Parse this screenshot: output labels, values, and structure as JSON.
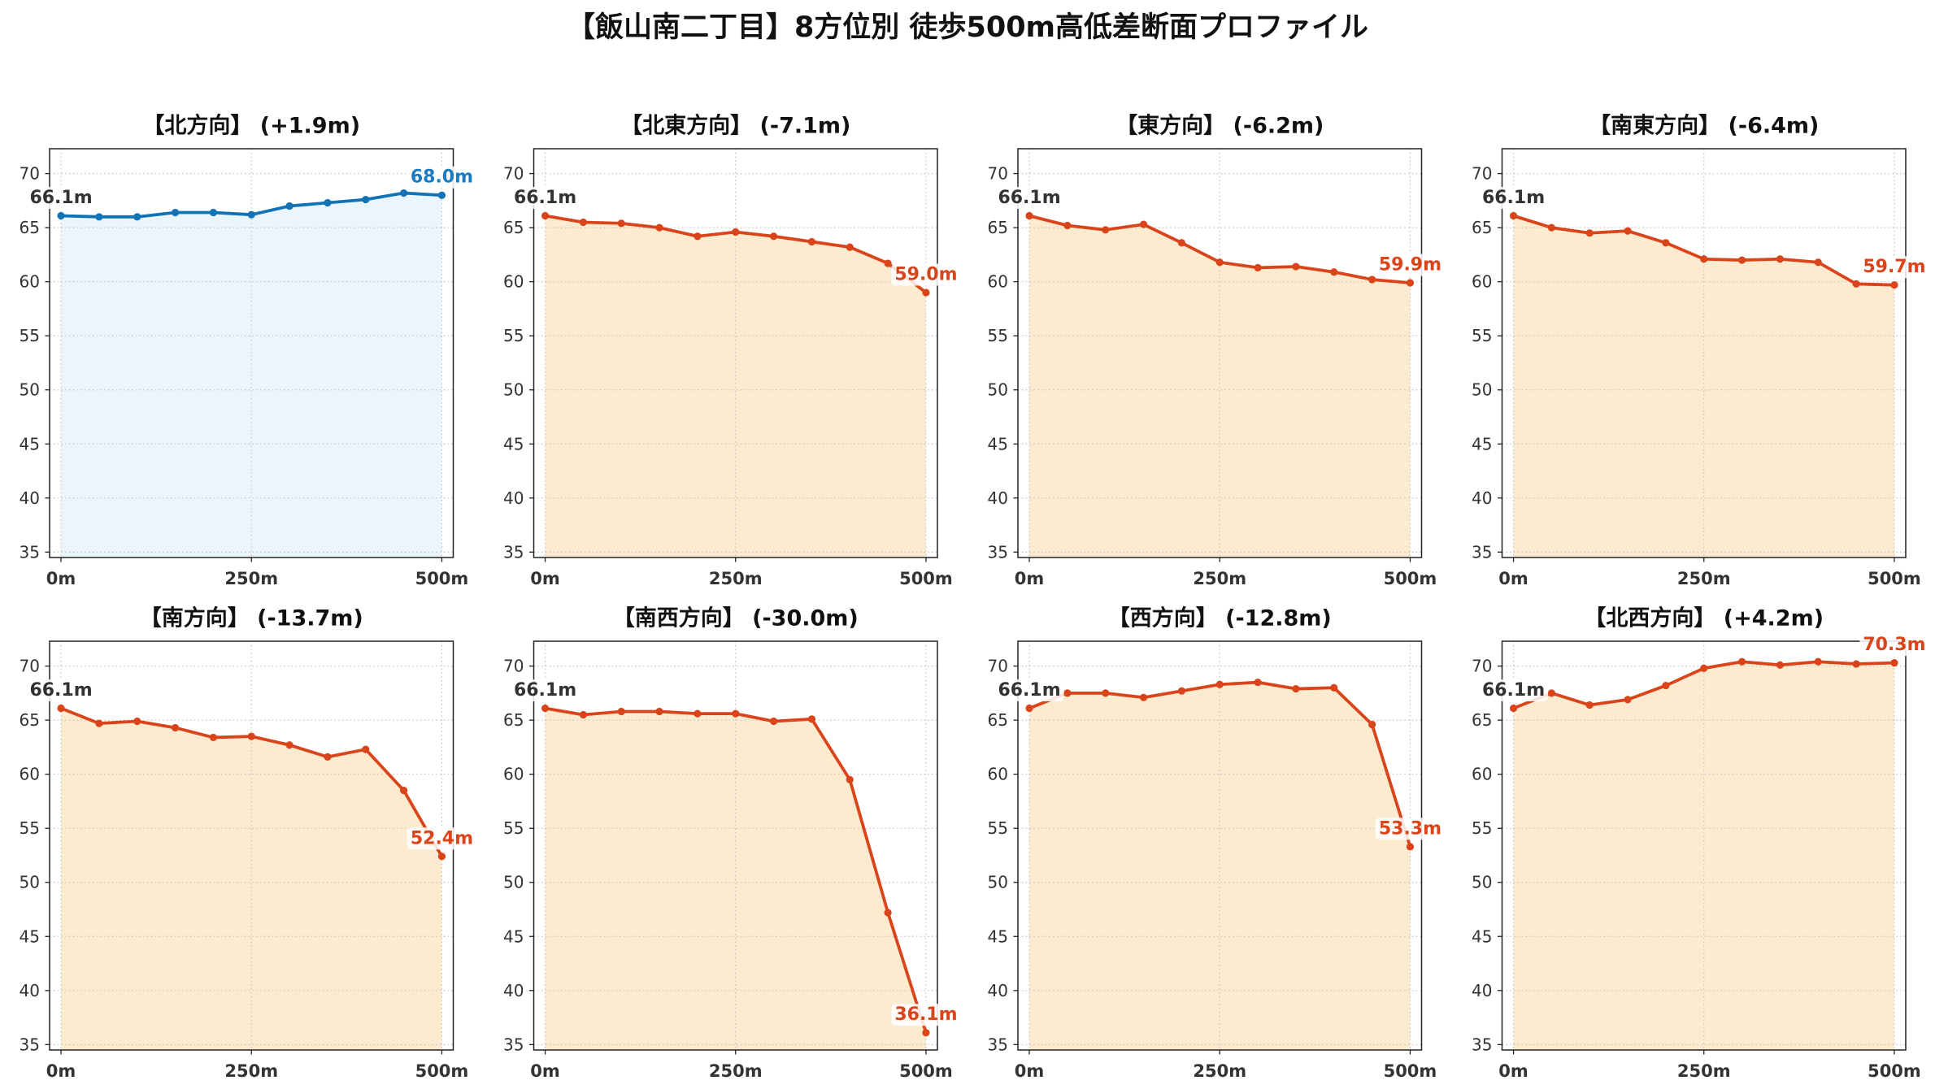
{
  "figure": {
    "title": "【飯山南二丁目】8方位別 徒歩500m高低差断面プロファイル"
  },
  "chart_data": [
    {
      "type": "area",
      "title": "【北方向】 (+1.9m)",
      "x": [
        0,
        50,
        100,
        150,
        200,
        250,
        300,
        350,
        400,
        450,
        500
      ],
      "values": [
        66.1,
        66.0,
        66.0,
        66.4,
        66.4,
        66.2,
        67.0,
        67.3,
        67.6,
        68.2,
        68.0
      ],
      "start_label": "66.1m",
      "end_label": "68.0m",
      "line_color": "#1172b6",
      "fill_color": "#eaf6fb",
      "label_color": "#1a7cc0",
      "start_label_color": "#333333",
      "xlim": [
        -15,
        515
      ],
      "ylim": [
        34.5,
        72.3
      ],
      "xticks": [
        0,
        250,
        500
      ],
      "xtick_labels": [
        "0m",
        "250m",
        "500m"
      ],
      "yticks": [
        35,
        40,
        45,
        50,
        55,
        60,
        65,
        70
      ],
      "grid": true
    },
    {
      "type": "area",
      "title": "【北東方向】 (-7.1m)",
      "x": [
        0,
        50,
        100,
        150,
        200,
        250,
        300,
        350,
        400,
        450,
        500
      ],
      "values": [
        66.1,
        65.5,
        65.4,
        65.0,
        64.2,
        64.6,
        64.2,
        63.7,
        63.2,
        61.7,
        59.0
      ],
      "start_label": "66.1m",
      "end_label": "59.0m",
      "line_color": "#d9441a",
      "fill_color": "#fdebd0",
      "label_color": "#d9441a",
      "start_label_color": "#333333",
      "xlim": [
        -15,
        515
      ],
      "ylim": [
        34.5,
        72.3
      ],
      "xticks": [
        0,
        250,
        500
      ],
      "xtick_labels": [
        "0m",
        "250m",
        "500m"
      ],
      "yticks": [
        35,
        40,
        45,
        50,
        55,
        60,
        65,
        70
      ],
      "grid": true
    },
    {
      "type": "area",
      "title": "【東方向】 (-6.2m)",
      "x": [
        0,
        50,
        100,
        150,
        200,
        250,
        300,
        350,
        400,
        450,
        500
      ],
      "values": [
        66.1,
        65.2,
        64.8,
        65.3,
        63.6,
        61.8,
        61.3,
        61.4,
        60.9,
        60.2,
        59.9
      ],
      "start_label": "66.1m",
      "end_label": "59.9m",
      "line_color": "#d9441a",
      "fill_color": "#fdebd0",
      "label_color": "#d9441a",
      "start_label_color": "#333333",
      "xlim": [
        -15,
        515
      ],
      "ylim": [
        34.5,
        72.3
      ],
      "xticks": [
        0,
        250,
        500
      ],
      "xtick_labels": [
        "0m",
        "250m",
        "500m"
      ],
      "yticks": [
        35,
        40,
        45,
        50,
        55,
        60,
        65,
        70
      ],
      "grid": true
    },
    {
      "type": "area",
      "title": "【南東方向】 (-6.4m)",
      "x": [
        0,
        50,
        100,
        150,
        200,
        250,
        300,
        350,
        400,
        450,
        500
      ],
      "values": [
        66.1,
        65.0,
        64.5,
        64.7,
        63.6,
        62.1,
        62.0,
        62.1,
        61.8,
        59.8,
        59.7
      ],
      "start_label": "66.1m",
      "end_label": "59.7m",
      "line_color": "#d9441a",
      "fill_color": "#fdebd0",
      "label_color": "#d9441a",
      "start_label_color": "#333333",
      "xlim": [
        -15,
        515
      ],
      "ylim": [
        34.5,
        72.3
      ],
      "xticks": [
        0,
        250,
        500
      ],
      "xtick_labels": [
        "0m",
        "250m",
        "500m"
      ],
      "yticks": [
        35,
        40,
        45,
        50,
        55,
        60,
        65,
        70
      ],
      "grid": true
    },
    {
      "type": "area",
      "title": "【南方向】 (-13.7m)",
      "x": [
        0,
        50,
        100,
        150,
        200,
        250,
        300,
        350,
        400,
        450,
        500
      ],
      "values": [
        66.1,
        64.7,
        64.9,
        64.3,
        63.4,
        63.5,
        62.7,
        61.6,
        62.3,
        58.5,
        52.4
      ],
      "start_label": "66.1m",
      "end_label": "52.4m",
      "line_color": "#d9441a",
      "fill_color": "#fdebd0",
      "label_color": "#d9441a",
      "start_label_color": "#333333",
      "xlim": [
        -15,
        515
      ],
      "ylim": [
        34.5,
        72.3
      ],
      "xticks": [
        0,
        250,
        500
      ],
      "xtick_labels": [
        "0m",
        "250m",
        "500m"
      ],
      "yticks": [
        35,
        40,
        45,
        50,
        55,
        60,
        65,
        70
      ],
      "grid": true
    },
    {
      "type": "area",
      "title": "【南西方向】 (-30.0m)",
      "x": [
        0,
        50,
        100,
        150,
        200,
        250,
        300,
        350,
        400,
        450,
        500
      ],
      "values": [
        66.1,
        65.5,
        65.8,
        65.8,
        65.6,
        65.6,
        64.9,
        65.1,
        59.5,
        47.2,
        36.1
      ],
      "start_label": "66.1m",
      "end_label": "36.1m",
      "line_color": "#d9441a",
      "fill_color": "#fdebd0",
      "label_color": "#d9441a",
      "start_label_color": "#333333",
      "xlim": [
        -15,
        515
      ],
      "ylim": [
        34.5,
        72.3
      ],
      "xticks": [
        0,
        250,
        500
      ],
      "xtick_labels": [
        "0m",
        "250m",
        "500m"
      ],
      "yticks": [
        35,
        40,
        45,
        50,
        55,
        60,
        65,
        70
      ],
      "grid": true
    },
    {
      "type": "area",
      "title": "【西方向】 (-12.8m)",
      "x": [
        0,
        50,
        100,
        150,
        200,
        250,
        300,
        350,
        400,
        450,
        500
      ],
      "values": [
        66.1,
        67.5,
        67.5,
        67.1,
        67.7,
        68.3,
        68.5,
        67.9,
        68.0,
        64.6,
        53.3
      ],
      "start_label": "66.1m",
      "end_label": "53.3m",
      "line_color": "#d9441a",
      "fill_color": "#fdebd0",
      "label_color": "#d9441a",
      "start_label_color": "#333333",
      "xlim": [
        -15,
        515
      ],
      "ylim": [
        34.5,
        72.3
      ],
      "xticks": [
        0,
        250,
        500
      ],
      "xtick_labels": [
        "0m",
        "250m",
        "500m"
      ],
      "yticks": [
        35,
        40,
        45,
        50,
        55,
        60,
        65,
        70
      ],
      "grid": true
    },
    {
      "type": "area",
      "title": "【北西方向】 (+4.2m)",
      "x": [
        0,
        50,
        100,
        150,
        200,
        250,
        300,
        350,
        400,
        450,
        500
      ],
      "values": [
        66.1,
        67.5,
        66.4,
        66.9,
        68.2,
        69.8,
        70.4,
        70.1,
        70.4,
        70.2,
        70.3
      ],
      "start_label": "66.1m",
      "end_label": "70.3m",
      "line_color": "#d9441a",
      "fill_color": "#fdebd0",
      "label_color": "#d9441a",
      "start_label_color": "#333333",
      "xlim": [
        -15,
        515
      ],
      "ylim": [
        34.5,
        72.3
      ],
      "xticks": [
        0,
        250,
        500
      ],
      "xtick_labels": [
        "0m",
        "250m",
        "500m"
      ],
      "yticks": [
        35,
        40,
        45,
        50,
        55,
        60,
        65,
        70
      ],
      "grid": true
    }
  ]
}
